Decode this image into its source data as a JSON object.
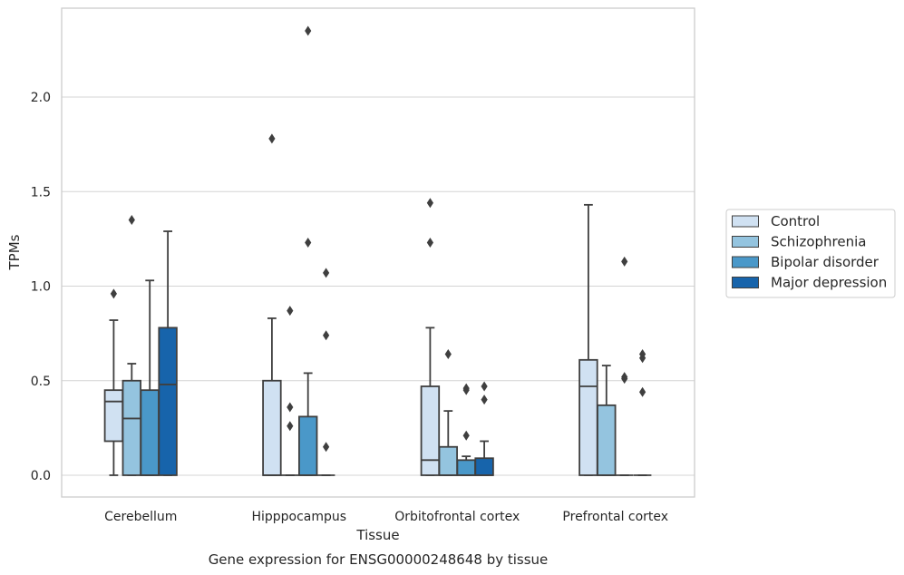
{
  "chart_data": {
    "type": "box",
    "caption": "Gene expression for ENSG00000248648 by tissue",
    "xlabel": "Tissue",
    "ylabel": "TPMs",
    "ylim": [
      -0.11,
      2.48
    ],
    "yticks": [
      0.0,
      0.5,
      1.0,
      1.5,
      2.0
    ],
    "ytick_labels": [
      "0.0",
      "0.5",
      "1.0",
      "1.5",
      "2.0"
    ],
    "grid": "horizontal",
    "legend_position": "right",
    "categories": [
      "Cerebellum",
      "Hipppocampus",
      "Orbitofrontal cortex",
      "Prefrontal cortex"
    ],
    "series": [
      {
        "name": "Control",
        "color": "#d0e1f2",
        "boxes": [
          {
            "whislo": 0.0,
            "q1": 0.18,
            "med": 0.39,
            "q3": 0.45,
            "whishi": 0.82,
            "fliers": [
              0.96
            ]
          },
          {
            "whislo": 0.0,
            "q1": 0.0,
            "med": 0.0,
            "q3": 0.5,
            "whishi": 0.83,
            "fliers": [
              1.78
            ]
          },
          {
            "whislo": 0.0,
            "q1": 0.0,
            "med": 0.08,
            "q3": 0.47,
            "whishi": 0.78,
            "fliers": [
              1.23,
              1.44
            ]
          },
          {
            "whislo": 0.0,
            "q1": 0.0,
            "med": 0.47,
            "q3": 0.61,
            "whishi": 1.43,
            "fliers": []
          }
        ]
      },
      {
        "name": "Schizophrenia",
        "color": "#94c4df",
        "boxes": [
          {
            "whislo": 0.0,
            "q1": 0.0,
            "med": 0.3,
            "q3": 0.5,
            "whishi": 0.59,
            "fliers": [
              1.35
            ]
          },
          {
            "whislo": 0.0,
            "q1": 0.0,
            "med": 0.0,
            "q3": 0.0,
            "whishi": 0.0,
            "fliers": [
              0.26,
              0.36,
              0.87
            ]
          },
          {
            "whislo": 0.0,
            "q1": 0.0,
            "med": 0.0,
            "q3": 0.15,
            "whishi": 0.34,
            "fliers": [
              0.64
            ]
          },
          {
            "whislo": 0.0,
            "q1": 0.0,
            "med": 0.0,
            "q3": 0.37,
            "whishi": 0.58,
            "fliers": []
          }
        ]
      },
      {
        "name": "Bipolar disorder",
        "color": "#4a98c9",
        "boxes": [
          {
            "whislo": 0.0,
            "q1": 0.0,
            "med": 0.0,
            "q3": 0.45,
            "whishi": 1.03,
            "fliers": []
          },
          {
            "whislo": 0.0,
            "q1": 0.0,
            "med": 0.0,
            "q3": 0.31,
            "whishi": 0.54,
            "fliers": [
              1.23,
              2.35
            ]
          },
          {
            "whislo": 0.0,
            "q1": 0.0,
            "med": 0.0,
            "q3": 0.08,
            "whishi": 0.1,
            "fliers": [
              0.21,
              0.45,
              0.46
            ]
          },
          {
            "whislo": 0.0,
            "q1": 0.0,
            "med": 0.0,
            "q3": 0.0,
            "whishi": 0.0,
            "fliers": [
              0.51,
              0.52,
              1.13
            ]
          }
        ]
      },
      {
        "name": "Major depression",
        "color": "#1764ab",
        "boxes": [
          {
            "whislo": 0.0,
            "q1": 0.0,
            "med": 0.48,
            "q3": 0.78,
            "whishi": 1.29,
            "fliers": []
          },
          {
            "whislo": 0.0,
            "q1": 0.0,
            "med": 0.0,
            "q3": 0.0,
            "whishi": 0.0,
            "fliers": [
              0.15,
              0.74,
              1.07
            ]
          },
          {
            "whislo": 0.0,
            "q1": 0.0,
            "med": 0.0,
            "q3": 0.09,
            "whishi": 0.18,
            "fliers": [
              0.4,
              0.47
            ]
          },
          {
            "whislo": 0.0,
            "q1": 0.0,
            "med": 0.0,
            "q3": 0.0,
            "whishi": 0.0,
            "fliers": [
              0.44,
              0.62,
              0.64
            ]
          }
        ]
      }
    ]
  }
}
